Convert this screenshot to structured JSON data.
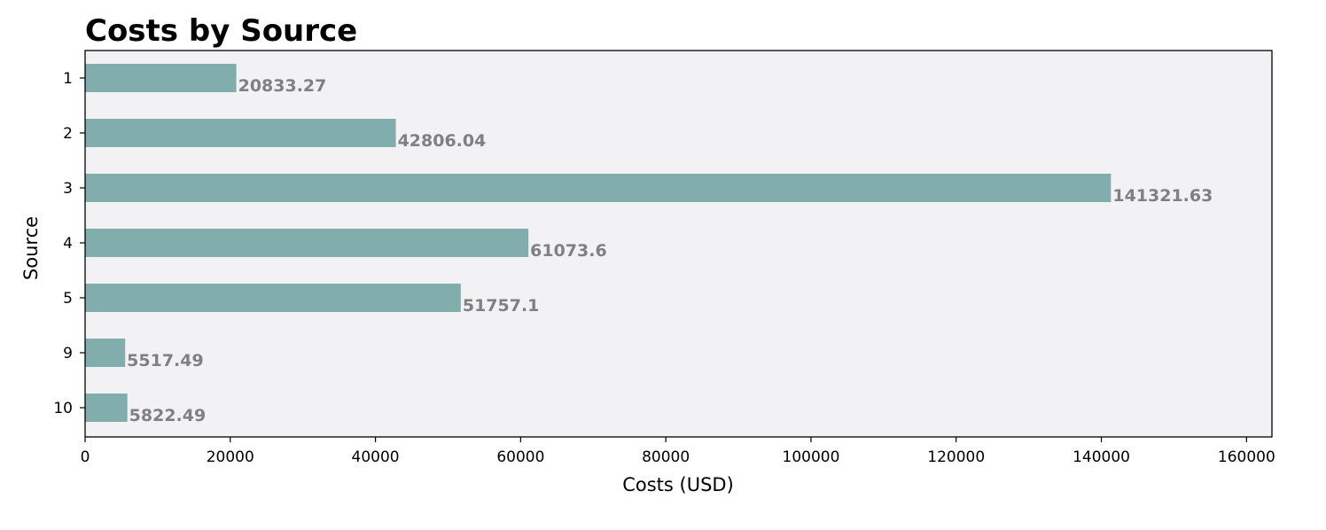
{
  "chart_data": {
    "type": "bar",
    "orientation": "horizontal",
    "title": "Costs by Source",
    "xlabel": "Costs (USD)",
    "ylabel": "Source",
    "categories": [
      "1",
      "2",
      "3",
      "4",
      "5",
      "9",
      "10"
    ],
    "values": [
      20833.27,
      42806.04,
      141321.63,
      61073.6,
      51757.1,
      5517.49,
      5822.49
    ],
    "data_labels": [
      "20833.27",
      "42806.04",
      "141321.63",
      "61073.6",
      "51757.1",
      "5517.49",
      "5822.49"
    ],
    "xlim": [
      0,
      163500
    ],
    "xticks": [
      0,
      20000,
      40000,
      60000,
      80000,
      100000,
      120000,
      140000,
      160000
    ],
    "xtick_labels": [
      "0",
      "20000",
      "40000",
      "60000",
      "80000",
      "100000",
      "120000",
      "140000",
      "160000"
    ],
    "grid": false,
    "legend": "none",
    "colors": {
      "bar": "#81adad",
      "plot_background": "#f2f2f5",
      "data_label": "#808080",
      "axes": "#000000"
    }
  }
}
